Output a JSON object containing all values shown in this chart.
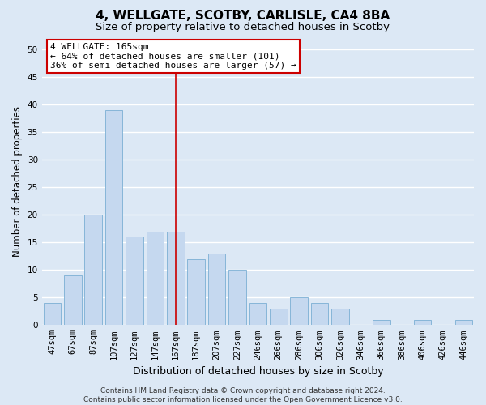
{
  "title1": "4, WELLGATE, SCOTBY, CARLISLE, CA4 8BA",
  "title2": "Size of property relative to detached houses in Scotby",
  "xlabel": "Distribution of detached houses by size in Scotby",
  "ylabel": "Number of detached properties",
  "categories": [
    "47sqm",
    "67sqm",
    "87sqm",
    "107sqm",
    "127sqm",
    "147sqm",
    "167sqm",
    "187sqm",
    "207sqm",
    "227sqm",
    "246sqm",
    "266sqm",
    "286sqm",
    "306sqm",
    "326sqm",
    "346sqm",
    "366sqm",
    "386sqm",
    "406sqm",
    "426sqm",
    "446sqm"
  ],
  "values": [
    4,
    9,
    20,
    39,
    16,
    17,
    17,
    12,
    13,
    10,
    4,
    3,
    5,
    4,
    3,
    0,
    1,
    0,
    1,
    0,
    1
  ],
  "bar_color": "#c5d8ef",
  "bar_edge_color": "#7bafd4",
  "highlight_bar_index": 6,
  "vline_color": "#cc0000",
  "annotation_text": "4 WELLGATE: 165sqm\n← 64% of detached houses are smaller (101)\n36% of semi-detached houses are larger (57) →",
  "annotation_box_color": "#ffffff",
  "annotation_box_edge_color": "#cc0000",
  "ylim": [
    0,
    52
  ],
  "yticks": [
    0,
    5,
    10,
    15,
    20,
    25,
    30,
    35,
    40,
    45,
    50
  ],
  "background_color": "#dce8f5",
  "plot_background_color": "#dce8f5",
  "grid_color": "#ffffff",
  "footer_text": "Contains HM Land Registry data © Crown copyright and database right 2024.\nContains public sector information licensed under the Open Government Licence v3.0.",
  "title1_fontsize": 11,
  "title2_fontsize": 9.5,
  "xlabel_fontsize": 9,
  "ylabel_fontsize": 8.5,
  "tick_fontsize": 7.5,
  "annotation_fontsize": 8,
  "footer_fontsize": 6.5
}
